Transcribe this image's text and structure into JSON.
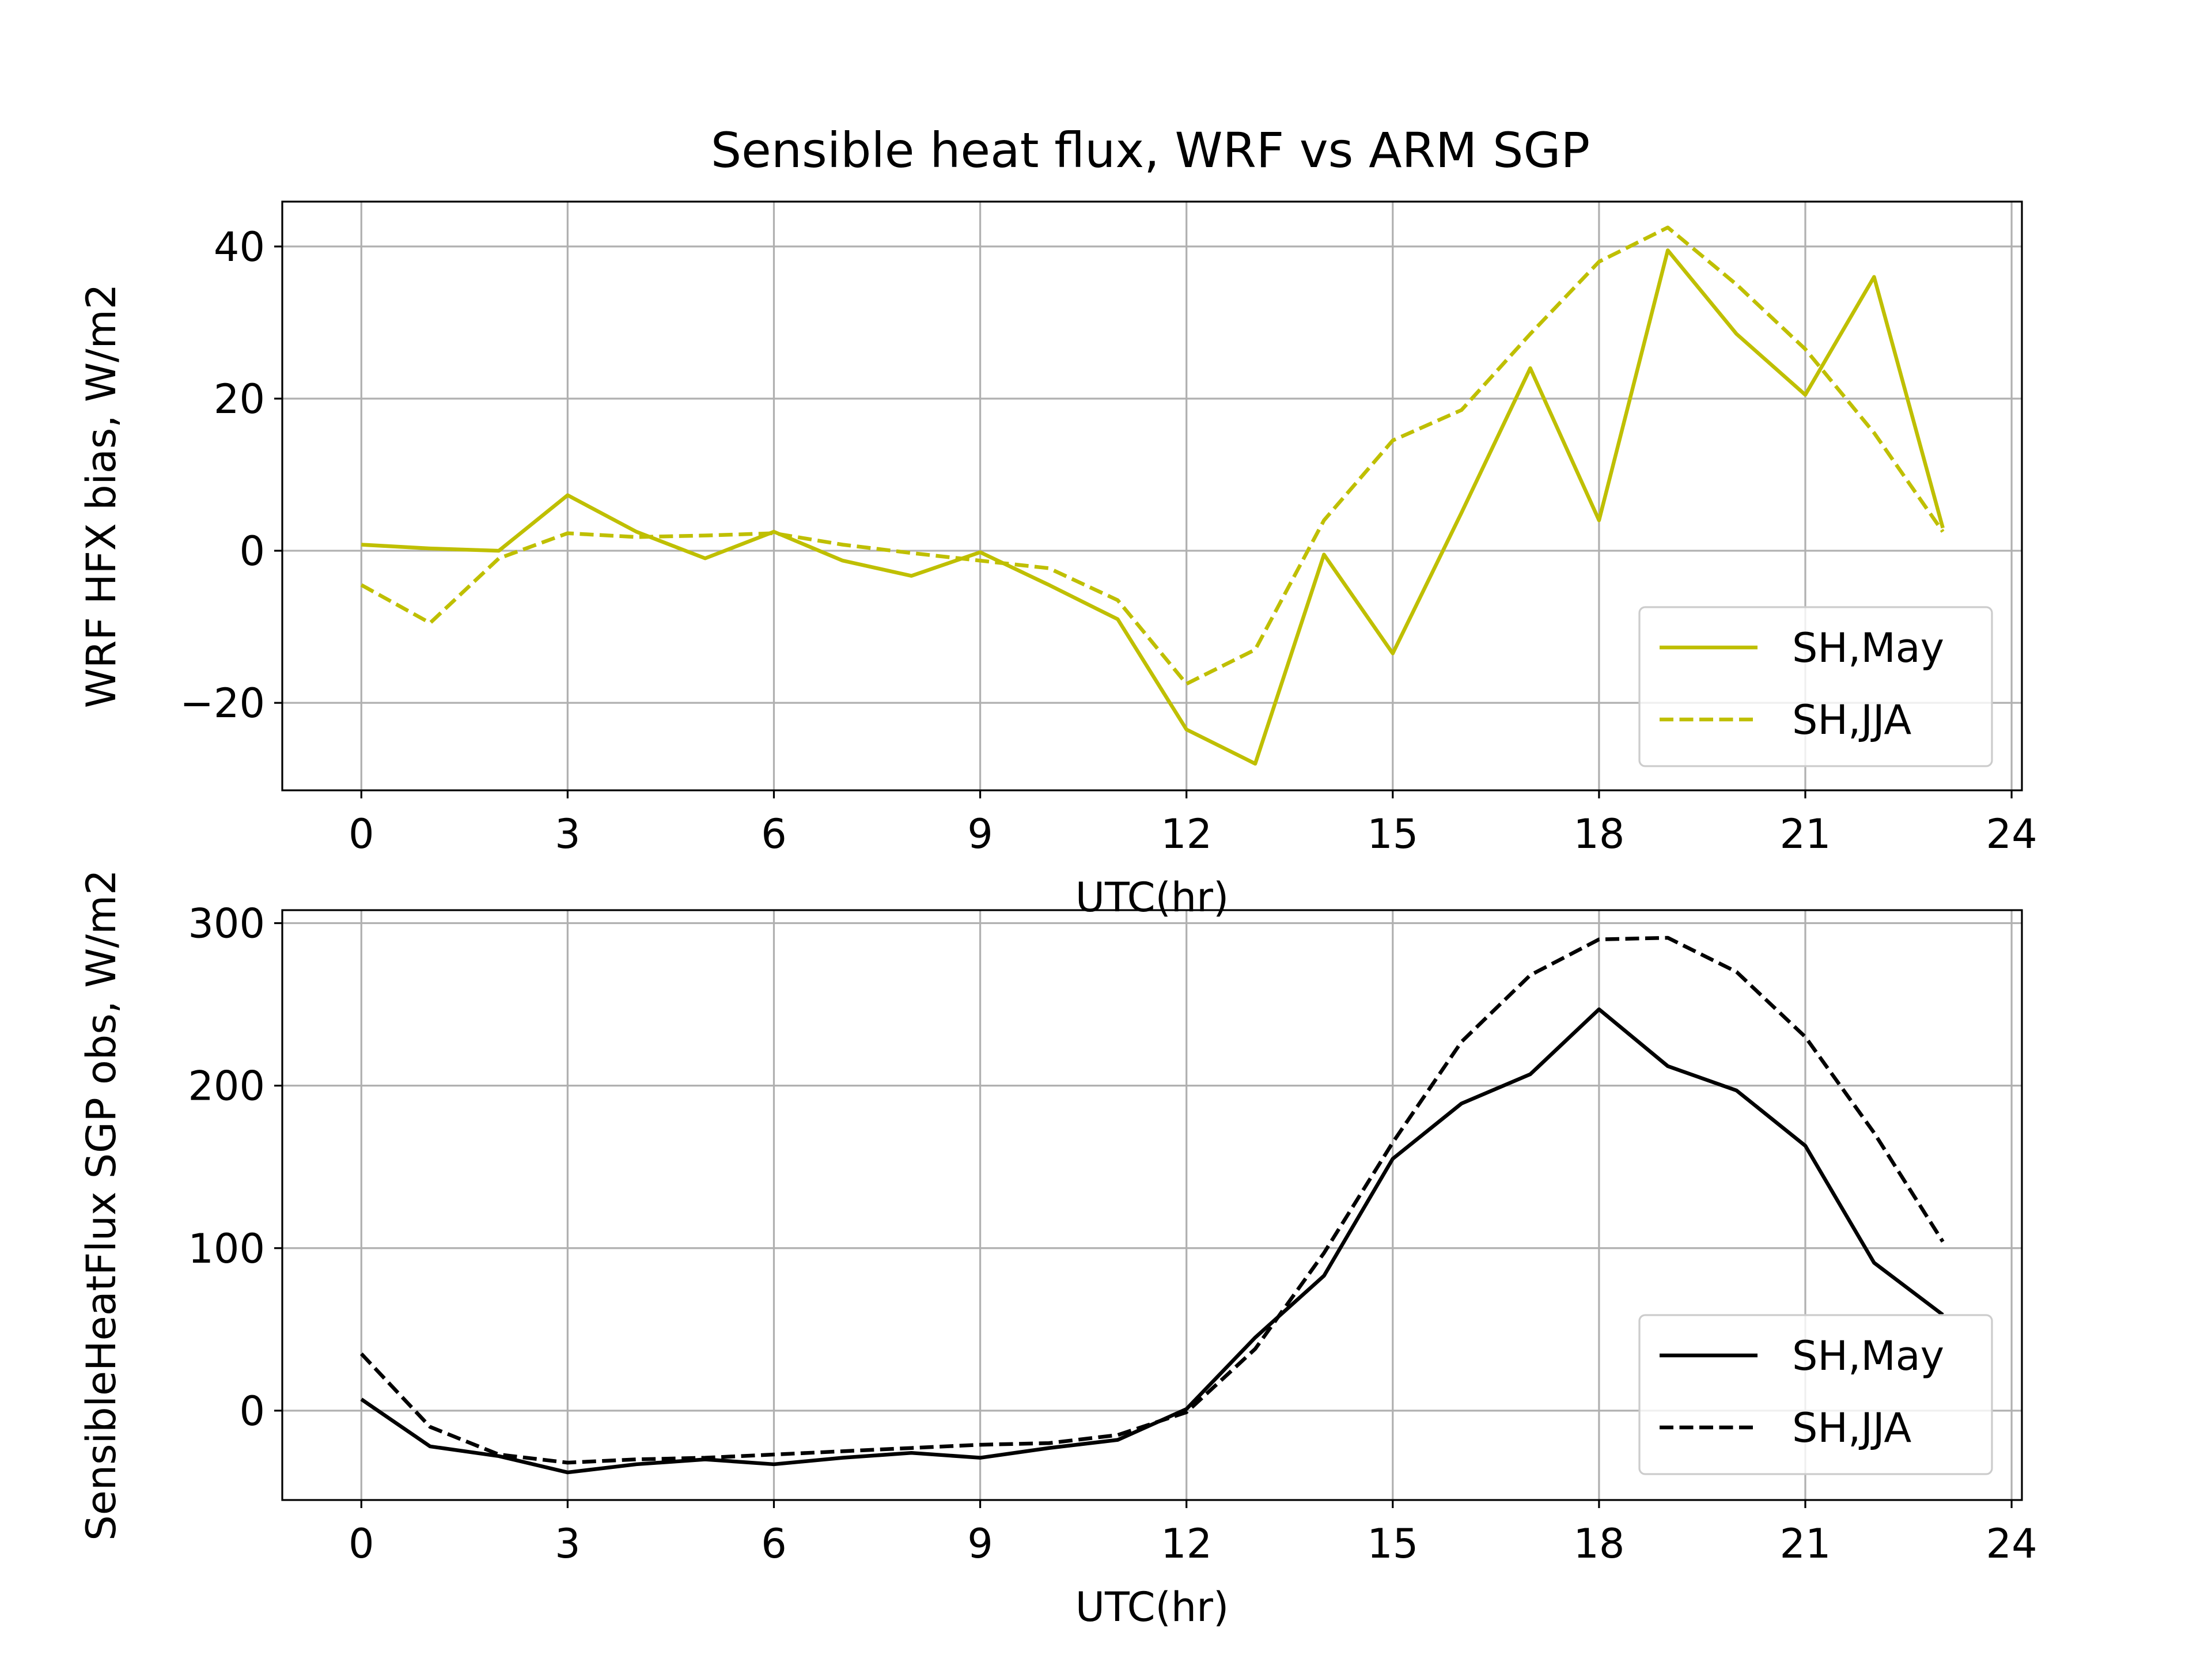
{
  "figure": {
    "title": "Sensible heat flux, WRF vs ARM SGP"
  },
  "chart_data": [
    {
      "type": "line",
      "xlabel": "UTC(hr)",
      "ylabel": "WRF HFX bias, W/m2",
      "xlim": [
        -1.15,
        24.15
      ],
      "ylim": [
        -31.5,
        45.9
      ],
      "xticks": [
        0,
        3,
        6,
        9,
        12,
        15,
        18,
        21,
        24
      ],
      "yticks": [
        -20,
        0,
        20,
        40
      ],
      "ytick_labels": [
        "−20",
        "0",
        "20",
        "40"
      ],
      "grid": true,
      "legend_position": "lower-right",
      "x": [
        0,
        1,
        2,
        3,
        4,
        5,
        6,
        7,
        8,
        9,
        10,
        11,
        12,
        13,
        14,
        15,
        16,
        17,
        18,
        19,
        20,
        21,
        22,
        23
      ],
      "series": [
        {
          "name": "SH,May",
          "color": "#bfbf00",
          "dash": "solid",
          "values": [
            0.8,
            0.3,
            0.0,
            7.3,
            2.5,
            -1.0,
            2.5,
            -1.3,
            -3.3,
            -0.2,
            -4.5,
            -9.0,
            -23.5,
            -28.0,
            -0.5,
            -13.5,
            5.0,
            24.0,
            4.0,
            39.5,
            28.5,
            20.5,
            36.0,
            3.0
          ]
        },
        {
          "name": "SH,JJA",
          "color": "#bfbf00",
          "dash": "dashed",
          "values": [
            -4.5,
            -9.5,
            -1.0,
            2.3,
            1.8,
            2.0,
            2.3,
            0.8,
            -0.3,
            -1.3,
            -2.3,
            -6.5,
            -17.5,
            -13.0,
            4.0,
            14.5,
            18.5,
            28.5,
            38.0,
            42.5,
            35.0,
            26.5,
            15.5,
            2.5
          ]
        }
      ]
    },
    {
      "type": "line",
      "xlabel": "UTC(hr)",
      "ylabel": "SensibleHeatFlux SGP obs, W/m2",
      "xlim": [
        -1.15,
        24.15
      ],
      "ylim": [
        -55,
        308
      ],
      "xticks": [
        0,
        3,
        6,
        9,
        12,
        15,
        18,
        21,
        24
      ],
      "yticks": [
        0,
        100,
        200,
        300
      ],
      "ytick_labels": [
        "0",
        "100",
        "200",
        "300"
      ],
      "grid": true,
      "legend_position": "lower-right",
      "x": [
        0,
        1,
        2,
        3,
        4,
        5,
        6,
        7,
        8,
        9,
        10,
        11,
        12,
        13,
        14,
        15,
        16,
        17,
        18,
        19,
        20,
        21,
        22,
        23
      ],
      "series": [
        {
          "name": "SH,May",
          "color": "#000000",
          "dash": "solid",
          "values": [
            7,
            -22,
            -28,
            -38,
            -33,
            -30,
            -33,
            -29,
            -26,
            -29,
            -23,
            -18,
            1,
            45,
            83,
            155,
            189,
            207,
            247,
            212,
            197,
            163,
            91,
            59
          ]
        },
        {
          "name": "SH,JJA",
          "color": "#000000",
          "dash": "dashed",
          "values": [
            35,
            -10,
            -27,
            -32,
            -30,
            -29,
            -27,
            -25,
            -23,
            -21,
            -20,
            -15,
            -1,
            38,
            97,
            165,
            227,
            268,
            290,
            291,
            270,
            230,
            171,
            104
          ]
        }
      ]
    }
  ]
}
